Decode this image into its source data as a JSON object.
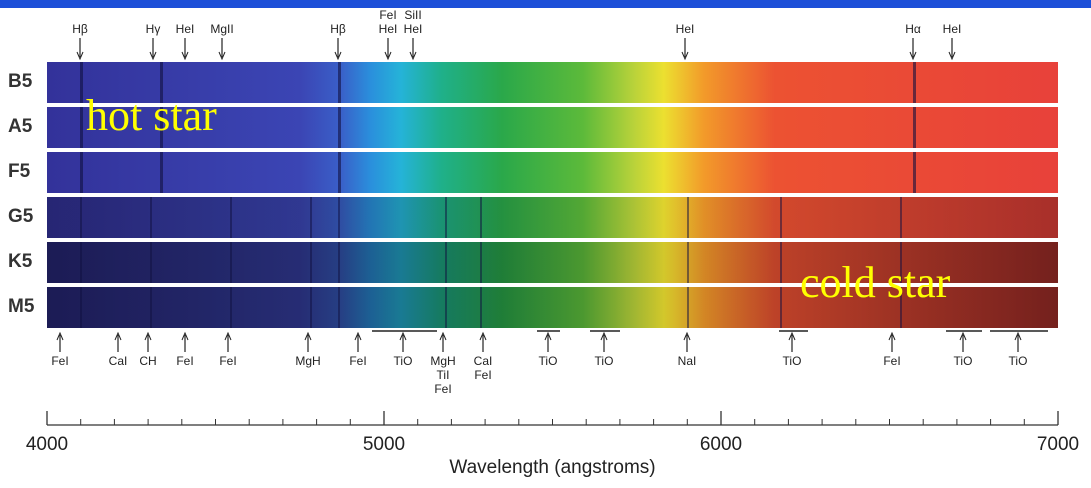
{
  "spectral_classes": [
    "B5",
    "A5",
    "F5",
    "G5",
    "K5",
    "M5"
  ],
  "top_lines": [
    [
      "Hβ"
    ],
    [
      "Hγ"
    ],
    [
      "HeI"
    ],
    [
      "MgII"
    ],
    [
      "Hβ"
    ],
    [
      "FeI",
      "HeI"
    ],
    [
      "SiII",
      "HeI"
    ],
    [
      "HeI"
    ],
    [
      "Hα"
    ],
    [
      "HeI"
    ]
  ],
  "bottom_lines": [
    [
      "FeI"
    ],
    [
      "CaI"
    ],
    [
      "CH"
    ],
    [
      "FeI"
    ],
    [
      "FeI"
    ],
    [
      "MgH"
    ],
    [
      "FeI"
    ],
    [
      "TiO"
    ],
    [
      "MgH",
      "TiI",
      "FeI"
    ],
    [
      "CaI",
      "FeI"
    ],
    [
      "TiO"
    ],
    [
      "TiO"
    ],
    [
      "NaI"
    ],
    [
      "TiO"
    ],
    [
      "FeI"
    ],
    [
      "TiO"
    ],
    [
      "TiO"
    ]
  ],
  "annotations": {
    "hot": "hot star",
    "cold": "cold star"
  },
  "axis": {
    "label": "Wavelength (angstroms)",
    "range": [
      4000,
      7000
    ],
    "ticks": [
      4000,
      5000,
      6000,
      7000
    ]
  }
}
